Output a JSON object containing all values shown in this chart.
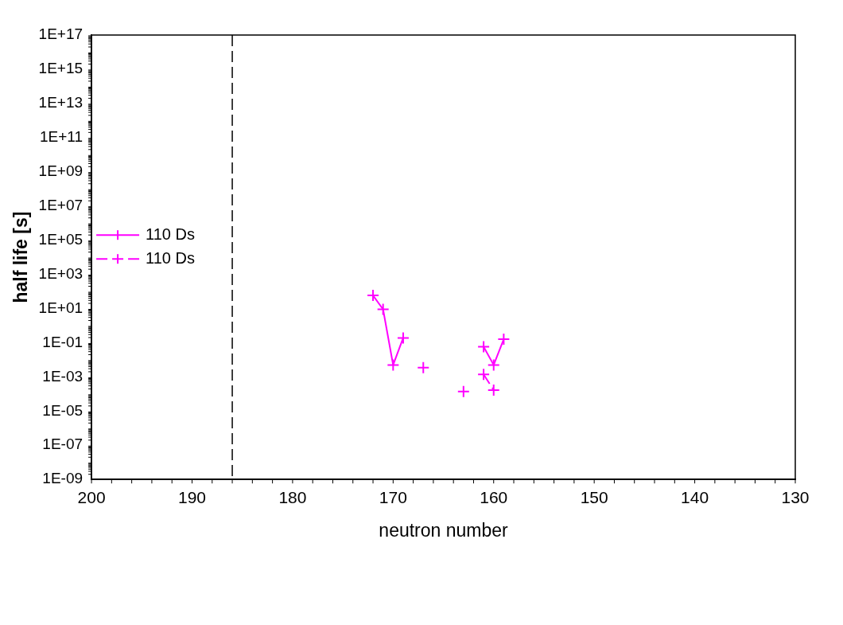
{
  "chart_data": {
    "type": "line",
    "xlabel": "neutron number",
    "ylabel": "half life [s]",
    "xlim": [
      200,
      130
    ],
    "xticks": [
      200,
      190,
      180,
      170,
      160,
      150,
      140,
      130
    ],
    "ylim": [
      1e-09,
      1e+17
    ],
    "yticks": [
      {
        "value": 1e-09,
        "label": "1E-09"
      },
      {
        "value": 1e-07,
        "label": "1E-07"
      },
      {
        "value": 1e-05,
        "label": "1E-05"
      },
      {
        "value": 0.001,
        "label": "1E-03"
      },
      {
        "value": 0.1,
        "label": "1E-01"
      },
      {
        "value": 10.0,
        "label": "1E+01"
      },
      {
        "value": 1000.0,
        "label": "1E+03"
      },
      {
        "value": 100000.0,
        "label": "1E+05"
      },
      {
        "value": 10000000.0,
        "label": "1E+07"
      },
      {
        "value": 1000000000.0,
        "label": "1E+09"
      },
      {
        "value": 100000000000.0,
        "label": "1E+11"
      },
      {
        "value": 10000000000000.0,
        "label": "1E+13"
      },
      {
        "value": 1000000000000000.0,
        "label": "1E+15"
      },
      {
        "value": 1e+17,
        "label": "1E+17"
      }
    ],
    "log": "y",
    "grid": false,
    "legend": "left",
    "marker": "cross",
    "series": [
      {
        "name": "110 Ds",
        "color": "#ff00ff",
        "line_style": "solid",
        "x": [
          172,
          171,
          170,
          169,
          null,
          161,
          160,
          159
        ],
        "values": [
          58,
          9,
          0.005,
          0.19,
          null,
          0.058,
          0.005,
          0.16
        ]
      },
      {
        "name": "110 Ds",
        "color": "#ff00ff",
        "line_style": "dashed",
        "x": [
          167,
          null,
          163,
          null,
          161,
          160
        ],
        "values": [
          0.0035,
          null,
          0.00014,
          null,
          0.0014,
          0.00017
        ]
      }
    ],
    "ref_lines": [
      {
        "axis": "x",
        "value": 186,
        "color": "#000000",
        "line_style": "dashed"
      }
    ]
  }
}
